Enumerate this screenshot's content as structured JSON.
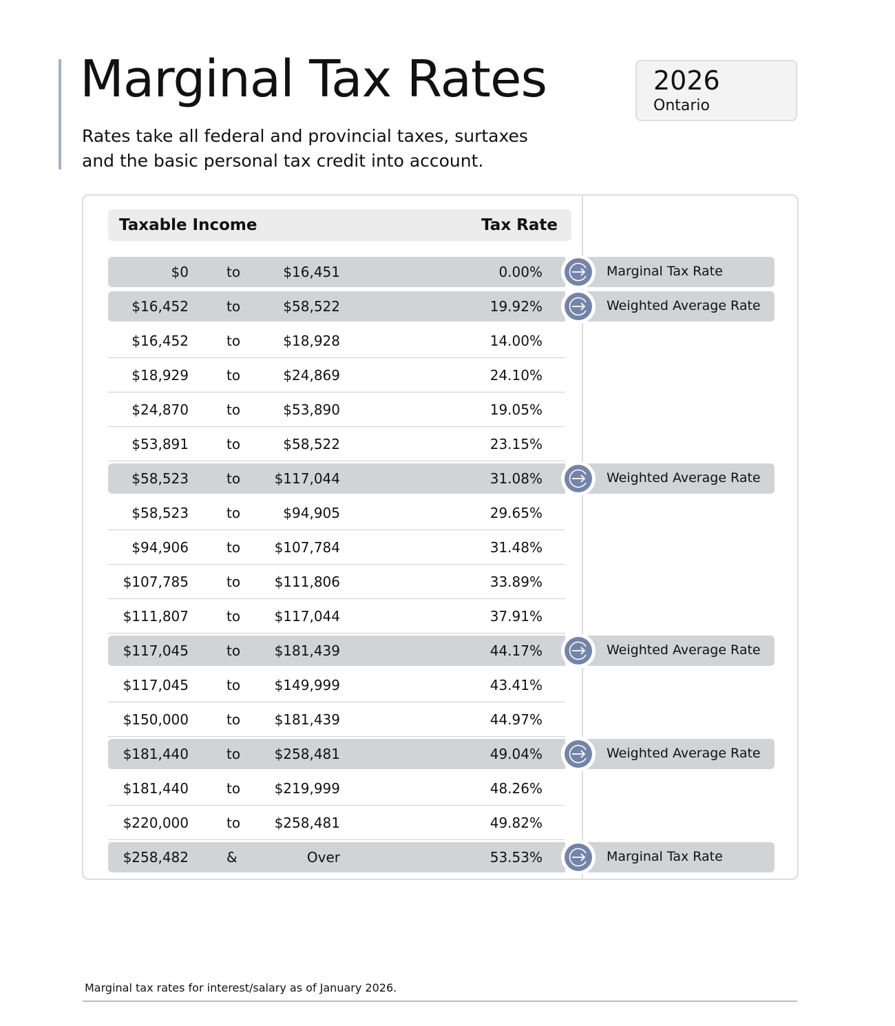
{
  "header": {
    "title": "Marginal Tax Rates",
    "subtitle": "Rates take all federal and provincial taxes, surtaxes and the basic personal tax credit into account.",
    "year": "2026",
    "province": "Ontario"
  },
  "table": {
    "col_income": "Taxable Income",
    "col_rate": "Tax Rate",
    "rows": [
      {
        "from": "$0",
        "sep": "to",
        "to": "$16,451",
        "rate": "0.00%",
        "highlight": true,
        "label": "Marginal Tax Rate"
      },
      {
        "from": "$16,452",
        "sep": "to",
        "to": "$58,522",
        "rate": "19.92%",
        "highlight": true,
        "label": "Weighted Average Rate"
      },
      {
        "from": "$16,452",
        "sep": "to",
        "to": "$18,928",
        "rate": "14.00%"
      },
      {
        "from": "$18,929",
        "sep": "to",
        "to": "$24,869",
        "rate": "24.10%"
      },
      {
        "from": "$24,870",
        "sep": "to",
        "to": "$53,890",
        "rate": "19.05%"
      },
      {
        "from": "$53,891",
        "sep": "to",
        "to": "$58,522",
        "rate": "23.15%"
      },
      {
        "from": "$58,523",
        "sep": "to",
        "to": "$117,044",
        "rate": "31.08%",
        "highlight": true,
        "label": "Weighted Average Rate"
      },
      {
        "from": "$58,523",
        "sep": "to",
        "to": "$94,905",
        "rate": "29.65%"
      },
      {
        "from": "$94,906",
        "sep": "to",
        "to": "$107,784",
        "rate": "31.48%"
      },
      {
        "from": "$107,785",
        "sep": "to",
        "to": "$111,806",
        "rate": "33.89%"
      },
      {
        "from": "$111,807",
        "sep": "to",
        "to": "$117,044",
        "rate": "37.91%"
      },
      {
        "from": "$117,045",
        "sep": "to",
        "to": "$181,439",
        "rate": "44.17%",
        "highlight": true,
        "label": "Weighted Average Rate"
      },
      {
        "from": "$117,045",
        "sep": "to",
        "to": "$149,999",
        "rate": "43.41%"
      },
      {
        "from": "$150,000",
        "sep": "to",
        "to": "$181,439",
        "rate": "44.97%"
      },
      {
        "from": "$181,440",
        "sep": "to",
        "to": "$258,481",
        "rate": "49.04%",
        "highlight": true,
        "label": "Weighted Average Rate"
      },
      {
        "from": "$181,440",
        "sep": "to",
        "to": "$219,999",
        "rate": "48.26%"
      },
      {
        "from": "$220,000",
        "sep": "to",
        "to": "$258,481",
        "rate": "49.82%"
      },
      {
        "from": "$258,482",
        "sep": "&",
        "to": "Over",
        "rate": "53.53%",
        "highlight": true,
        "label": "Marginal Tax Rate"
      }
    ]
  },
  "colors": {
    "accent": "#9fb3c8",
    "icon": "#7384ab",
    "highlight": "#d2d3d6"
  },
  "icons": {
    "row_marker": "arrow-right-circle-icon"
  },
  "footnote": "Marginal tax rates for interest/salary as of January 2026."
}
